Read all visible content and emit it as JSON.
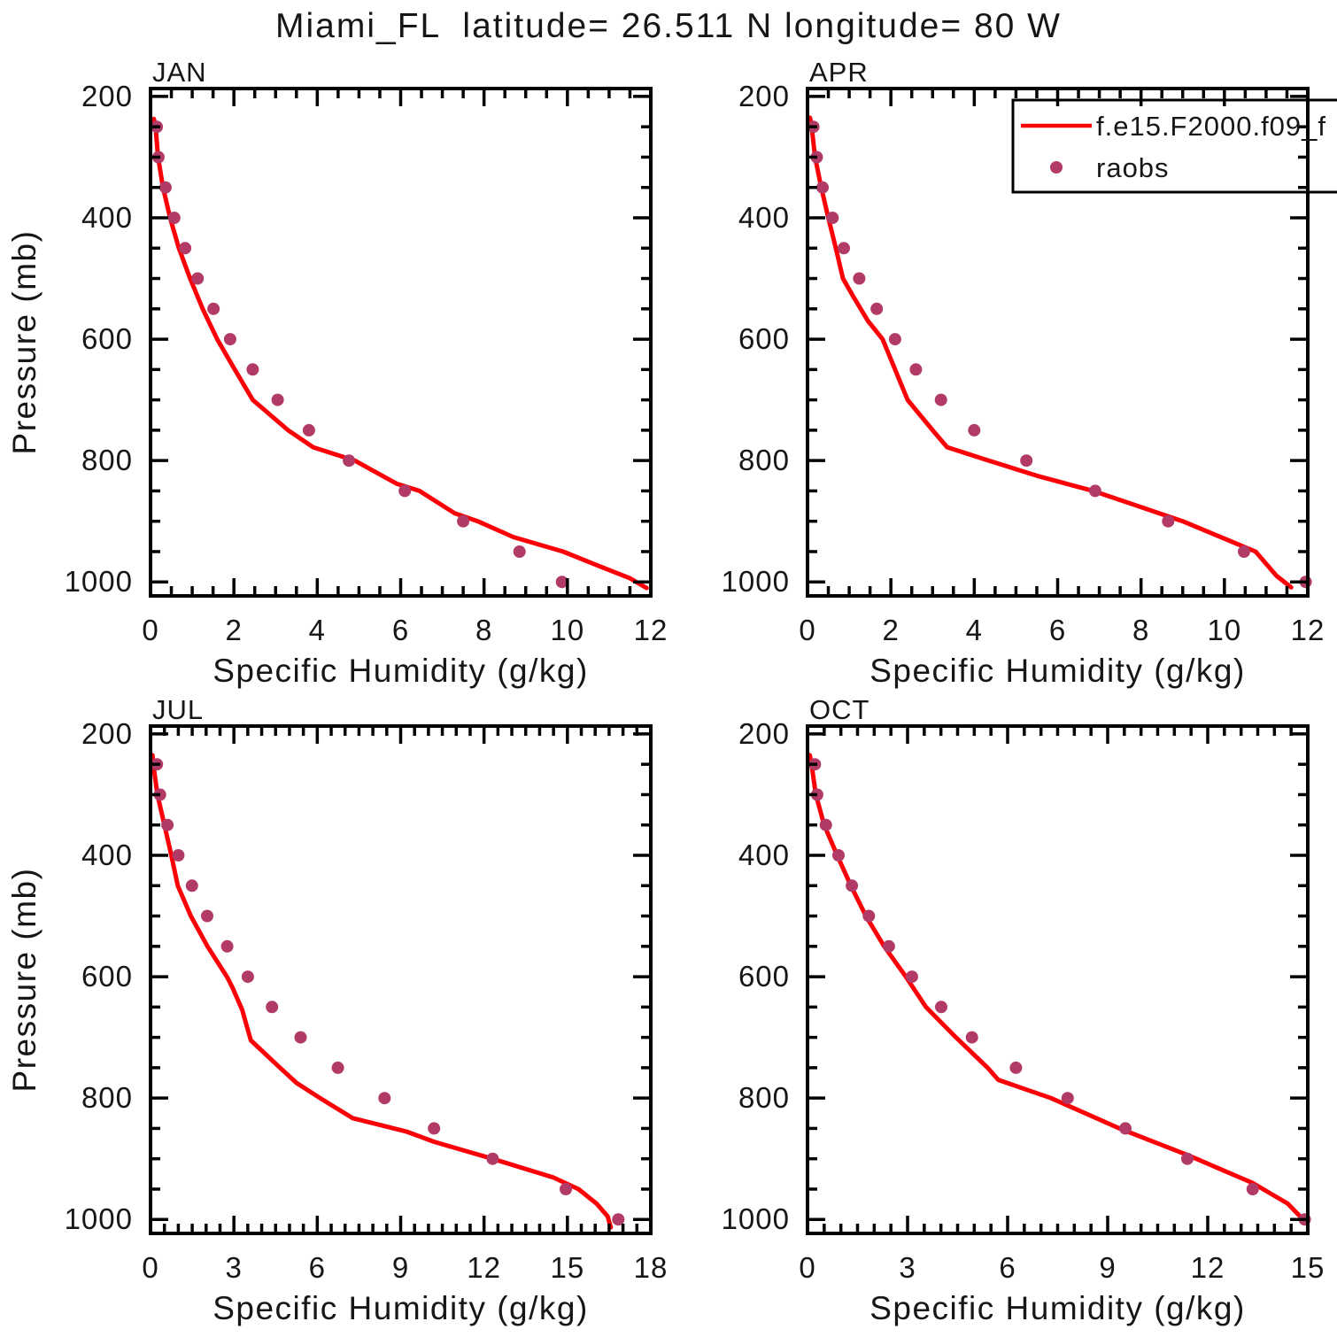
{
  "title": "Miami_FL  latitude= 26.511 N longitude= 80 W",
  "colors": {
    "model_line": "#fb0007",
    "raobs_dot": "#b23a67",
    "axis": "#000000",
    "legend_fill": "#ffffff"
  },
  "legend": {
    "items": [
      {
        "marker": "line",
        "label": "f.e15.F2000.f09_f"
      },
      {
        "marker": "dot",
        "label": "raobs"
      }
    ]
  },
  "shared_axes": {
    "ylabel": "Pressure (mb)",
    "xlabel": "Specific Humidity (g/kg)",
    "yticks": [
      200,
      400,
      600,
      800,
      1000
    ],
    "y_minor_step": 50,
    "y_inverted": true
  },
  "chart_data": [
    {
      "type": "line",
      "month": "JAN",
      "xlabel": "Specific Humidity (g/kg)",
      "ylabel": "Pressure (mb)",
      "xlim": [
        0,
        12
      ],
      "xticks": [
        0,
        2,
        4,
        6,
        8,
        10,
        12
      ],
      "x_minor_step": 0.5,
      "ylim": [
        200,
        1000
      ],
      "yticks": [
        200,
        400,
        600,
        800,
        1000
      ],
      "series": [
        {
          "name": "f.e15.F2000.f09_f",
          "style": "line",
          "color_key": "model_line",
          "points_x_pressure": [
            [
              0.08,
              237
            ],
            [
              0.12,
              250
            ],
            [
              0.18,
              300
            ],
            [
              0.3,
              350
            ],
            [
              0.47,
              400
            ],
            [
              0.68,
              450
            ],
            [
              0.95,
              500
            ],
            [
              1.25,
              550
            ],
            [
              1.6,
              600
            ],
            [
              2.02,
              650
            ],
            [
              2.45,
              700
            ],
            [
              3.3,
              750
            ],
            [
              3.9,
              778
            ],
            [
              4.9,
              800
            ],
            [
              5.9,
              838
            ],
            [
              6.45,
              850
            ],
            [
              7.3,
              887
            ],
            [
              7.85,
              900
            ],
            [
              8.7,
              926
            ],
            [
              9.9,
              950
            ],
            [
              10.8,
              975
            ],
            [
              11.5,
              994
            ],
            [
              11.9,
              1010
            ]
          ]
        },
        {
          "name": "raobs",
          "style": "scatter",
          "color_key": "raobs_dot",
          "points_x_pressure": [
            [
              0.15,
              250
            ],
            [
              0.19,
              300
            ],
            [
              0.36,
              350
            ],
            [
              0.57,
              400
            ],
            [
              0.83,
              450
            ],
            [
              1.13,
              500
            ],
            [
              1.51,
              550
            ],
            [
              1.91,
              600
            ],
            [
              2.45,
              650
            ],
            [
              3.05,
              700
            ],
            [
              3.8,
              750
            ],
            [
              4.76,
              800
            ],
            [
              6.1,
              850
            ],
            [
              7.5,
              900
            ],
            [
              8.85,
              950
            ],
            [
              9.87,
              1000
            ]
          ]
        }
      ]
    },
    {
      "type": "line",
      "month": "APR",
      "xlabel": "Specific Humidity (g/kg)",
      "ylabel": "Pressure (mb)",
      "xlim": [
        0,
        12
      ],
      "xticks": [
        0,
        2,
        4,
        6,
        8,
        10,
        12
      ],
      "x_minor_step": 0.5,
      "ylim": [
        200,
        1000
      ],
      "yticks": [
        200,
        400,
        600,
        800,
        1000
      ],
      "series": [
        {
          "name": "f.e15.F2000.f09_f",
          "style": "line",
          "color_key": "model_line",
          "points_x_pressure": [
            [
              0.06,
              235
            ],
            [
              0.1,
              250
            ],
            [
              0.18,
              300
            ],
            [
              0.33,
              350
            ],
            [
              0.5,
              400
            ],
            [
              0.68,
              450
            ],
            [
              0.85,
              500
            ],
            [
              1.1,
              530
            ],
            [
              1.45,
              570
            ],
            [
              1.8,
              600
            ],
            [
              2.1,
              650
            ],
            [
              2.4,
              700
            ],
            [
              3.0,
              750
            ],
            [
              3.35,
              778
            ],
            [
              4.35,
              800
            ],
            [
              5.5,
              825
            ],
            [
              6.85,
              850
            ],
            [
              9.0,
              900
            ],
            [
              10.75,
              950
            ],
            [
              11.25,
              990
            ],
            [
              11.6,
              1009
            ]
          ]
        },
        {
          "name": "raobs",
          "style": "scatter",
          "color_key": "raobs_dot",
          "points_x_pressure": [
            [
              0.14,
              250
            ],
            [
              0.22,
              300
            ],
            [
              0.36,
              350
            ],
            [
              0.6,
              400
            ],
            [
              0.87,
              450
            ],
            [
              1.24,
              500
            ],
            [
              1.66,
              550
            ],
            [
              2.1,
              600
            ],
            [
              2.6,
              650
            ],
            [
              3.2,
              700
            ],
            [
              4.0,
              750
            ],
            [
              5.25,
              800
            ],
            [
              6.9,
              850
            ],
            [
              8.65,
              900
            ],
            [
              10.47,
              950
            ],
            [
              11.95,
              1000
            ]
          ]
        }
      ]
    },
    {
      "type": "line",
      "month": "JUL",
      "xlabel": "Specific Humidity (g/kg)",
      "ylabel": "Pressure (mb)",
      "xlim": [
        0,
        18
      ],
      "xticks": [
        0,
        3,
        6,
        9,
        12,
        15,
        18
      ],
      "x_minor_step": 0.5,
      "ylim": [
        200,
        1000
      ],
      "yticks": [
        200,
        400,
        600,
        800,
        1000
      ],
      "series": [
        {
          "name": "f.e15.F2000.f09_f",
          "style": "line",
          "color_key": "model_line",
          "points_x_pressure": [
            [
              0.07,
              235
            ],
            [
              0.1,
              250
            ],
            [
              0.25,
              300
            ],
            [
              0.5,
              350
            ],
            [
              0.75,
              400
            ],
            [
              0.98,
              450
            ],
            [
              1.45,
              500
            ],
            [
              2.05,
              550
            ],
            [
              2.75,
              600
            ],
            [
              2.95,
              618
            ],
            [
              3.3,
              655
            ],
            [
              3.61,
              705
            ],
            [
              4.66,
              750
            ],
            [
              5.25,
              775
            ],
            [
              6.1,
              800
            ],
            [
              7.27,
              833
            ],
            [
              9.2,
              855
            ],
            [
              10.2,
              872
            ],
            [
              12.3,
              900
            ],
            [
              14.5,
              931
            ],
            [
              15.4,
              950
            ],
            [
              16.05,
              974
            ],
            [
              16.45,
              995
            ],
            [
              16.56,
              1013
            ]
          ]
        },
        {
          "name": "raobs",
          "style": "scatter",
          "color_key": "raobs_dot",
          "points_x_pressure": [
            [
              0.23,
              250
            ],
            [
              0.34,
              300
            ],
            [
              0.61,
              350
            ],
            [
              1.0,
              400
            ],
            [
              1.49,
              450
            ],
            [
              2.04,
              500
            ],
            [
              2.76,
              550
            ],
            [
              3.5,
              600
            ],
            [
              4.37,
              650
            ],
            [
              5.4,
              700
            ],
            [
              6.74,
              750
            ],
            [
              8.42,
              800
            ],
            [
              10.2,
              850
            ],
            [
              12.31,
              900
            ],
            [
              14.94,
              950
            ],
            [
              16.83,
              1000
            ]
          ]
        }
      ]
    },
    {
      "type": "line",
      "month": "OCT",
      "xlabel": "Specific Humidity (g/kg)",
      "ylabel": "Pressure (mb)",
      "xlim": [
        0,
        15
      ],
      "xticks": [
        0,
        3,
        6,
        9,
        12,
        15
      ],
      "x_minor_step": 0.5,
      "ylim": [
        200,
        1000
      ],
      "yticks": [
        200,
        400,
        600,
        800,
        1000
      ],
      "series": [
        {
          "name": "f.e15.F2000.f09_f",
          "style": "line",
          "color_key": "model_line",
          "points_x_pressure": [
            [
              0.07,
              235
            ],
            [
              0.12,
              250
            ],
            [
              0.25,
              300
            ],
            [
              0.5,
              350
            ],
            [
              0.89,
              400
            ],
            [
              1.3,
              450
            ],
            [
              1.75,
              500
            ],
            [
              2.3,
              550
            ],
            [
              2.95,
              600
            ],
            [
              3.55,
              650
            ],
            [
              4.45,
              700
            ],
            [
              5.4,
              750
            ],
            [
              5.72,
              770
            ],
            [
              7.3,
              800
            ],
            [
              9.35,
              850
            ],
            [
              11.4,
              894
            ],
            [
              13.35,
              940
            ],
            [
              14.4,
              974
            ],
            [
              14.95,
              1005
            ]
          ]
        },
        {
          "name": "raobs",
          "style": "scatter",
          "color_key": "raobs_dot",
          "points_x_pressure": [
            [
              0.22,
              250
            ],
            [
              0.29,
              300
            ],
            [
              0.55,
              350
            ],
            [
              0.93,
              400
            ],
            [
              1.33,
              450
            ],
            [
              1.84,
              500
            ],
            [
              2.44,
              550
            ],
            [
              3.13,
              600
            ],
            [
              4.01,
              650
            ],
            [
              4.93,
              700
            ],
            [
              6.25,
              750
            ],
            [
              7.8,
              800
            ],
            [
              9.53,
              850
            ],
            [
              11.39,
              900
            ],
            [
              13.35,
              950
            ],
            [
              14.91,
              1000
            ]
          ]
        }
      ]
    }
  ]
}
